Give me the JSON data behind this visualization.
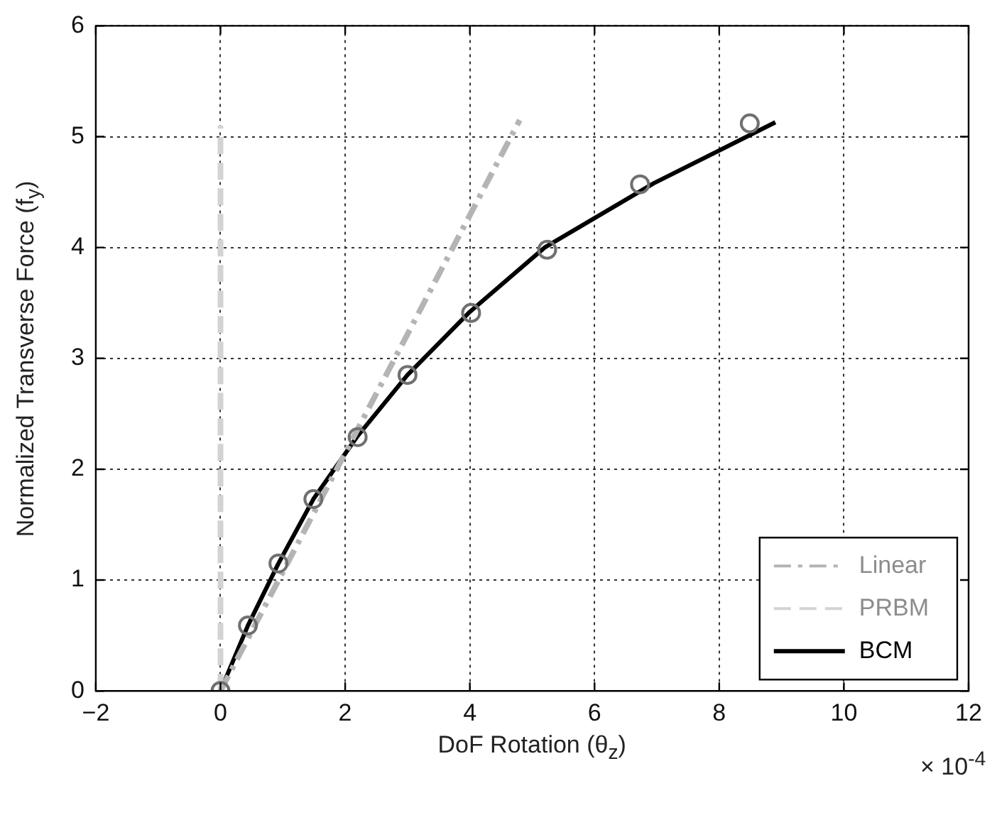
{
  "chart_data": {
    "type": "line",
    "xlabel": "DoF Rotation (θ$_{z}$)",
    "ylabel": "Normalized Transverse Force (f$_{y}$)",
    "annotations": [
      "× 10$^{-4}$"
    ],
    "xlim": [
      -2,
      12
    ],
    "xticks": [
      -2,
      0,
      2,
      4,
      6,
      8,
      10,
      12
    ],
    "ylim": [
      0,
      6
    ],
    "yticks": [
      0,
      1,
      2,
      3,
      4,
      5,
      6
    ],
    "grid": true,
    "legend": "bottom right",
    "marker": "none",
    "series": [
      {
        "name": "Linear",
        "line_style": "dashdot",
        "color": "#b4b4b4",
        "x": [
          0,
          4.8
        ],
        "values": [
          0,
          5.15
        ]
      },
      {
        "name": "PRBM",
        "line_style": "dashed",
        "color": "#d3d3d3",
        "x": [
          0,
          0
        ],
        "values": [
          0,
          5.1
        ]
      },
      {
        "name": "BCM",
        "line_style": "solid",
        "color": "#000000",
        "x": [
          0,
          0.44,
          0.93,
          1.49,
          2.2,
          3.0,
          4.0,
          5.2,
          6.95,
          8.9
        ],
        "values": [
          0,
          0.59,
          1.15,
          1.73,
          2.3,
          2.85,
          3.42,
          4.0,
          4.58,
          5.13
        ]
      },
      {
        "type": "scatter",
        "marker": "circle",
        "color": "#707070",
        "x": [
          0,
          0.44,
          0.93,
          1.49,
          2.2,
          3.0,
          4.02,
          5.24,
          6.73,
          8.49
        ],
        "values": [
          0,
          0.59,
          1.15,
          1.73,
          2.29,
          2.85,
          3.41,
          3.98,
          4.57,
          5.12
        ]
      }
    ]
  }
}
